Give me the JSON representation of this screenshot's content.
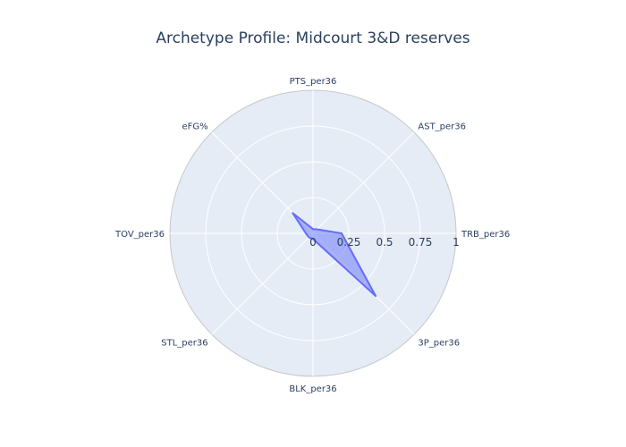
{
  "chart_data": {
    "type": "radar",
    "title": "Archetype Profile: Midcourt 3&D reserves",
    "axes": [
      "PTS_per36",
      "AST_per36",
      "TRB_per36",
      "3P_per36",
      "BLK_per36",
      "STL_per36",
      "TOV_per36",
      "eFG%"
    ],
    "radial_range": [
      0,
      1
    ],
    "radial_ticks": [
      "0",
      "0.25",
      "0.5",
      "0.75",
      "1"
    ],
    "series": [
      {
        "values": [
          0.03,
          0.04,
          0.2,
          0.62,
          0.04,
          0.04,
          0.05,
          0.2
        ]
      }
    ],
    "grid": true,
    "colors": {
      "fill": "rgba(99,110,250,0.5)",
      "line": "#636efa",
      "background": "#e5ecf6",
      "grid": "#ffffff",
      "text": "#2a3f5f"
    }
  }
}
